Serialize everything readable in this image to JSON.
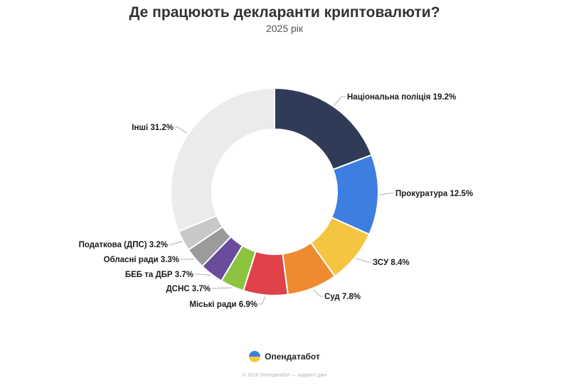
{
  "title": "Де працюють декларанти криптовалюти?",
  "subtitle": "2025 рік",
  "chart_data": {
    "type": "pie",
    "style": "donut",
    "slices": [
      {
        "label": "Національна поліція 19.2%",
        "value": 19.2,
        "color": "#2f3b57"
      },
      {
        "label": "Прокуратура 12.5%",
        "value": 12.5,
        "color": "#3d7ee0"
      },
      {
        "label": "ЗСУ 8.4%",
        "value": 8.4,
        "color": "#f5c542"
      },
      {
        "label": "Суд 7.8%",
        "value": 7.8,
        "color": "#ee8a2f"
      },
      {
        "label": "Міські ради 6.9%",
        "value": 6.9,
        "color": "#e0424a"
      },
      {
        "label": "ДСНС 3.7%",
        "value": 3.7,
        "color": "#8cc43f"
      },
      {
        "label": "БЕБ та ДБР 3.7%",
        "value": 3.7,
        "color": "#6a4c9c"
      },
      {
        "label": "Обласні ради 3.3%",
        "value": 3.3,
        "color": "#9b9b9b"
      },
      {
        "label": "Податкова (ДПС) 3.2%",
        "value": 3.2,
        "color": "#c8c8c8"
      },
      {
        "label": "Інші 31.2%",
        "value": 31.2,
        "color": "#ebebeb"
      }
    ]
  },
  "brand": {
    "name": "Опендатабот",
    "logo_icon": "opendatabot-logo-icon"
  },
  "footer": "© 2026 Опендатабот — відкриті дані"
}
